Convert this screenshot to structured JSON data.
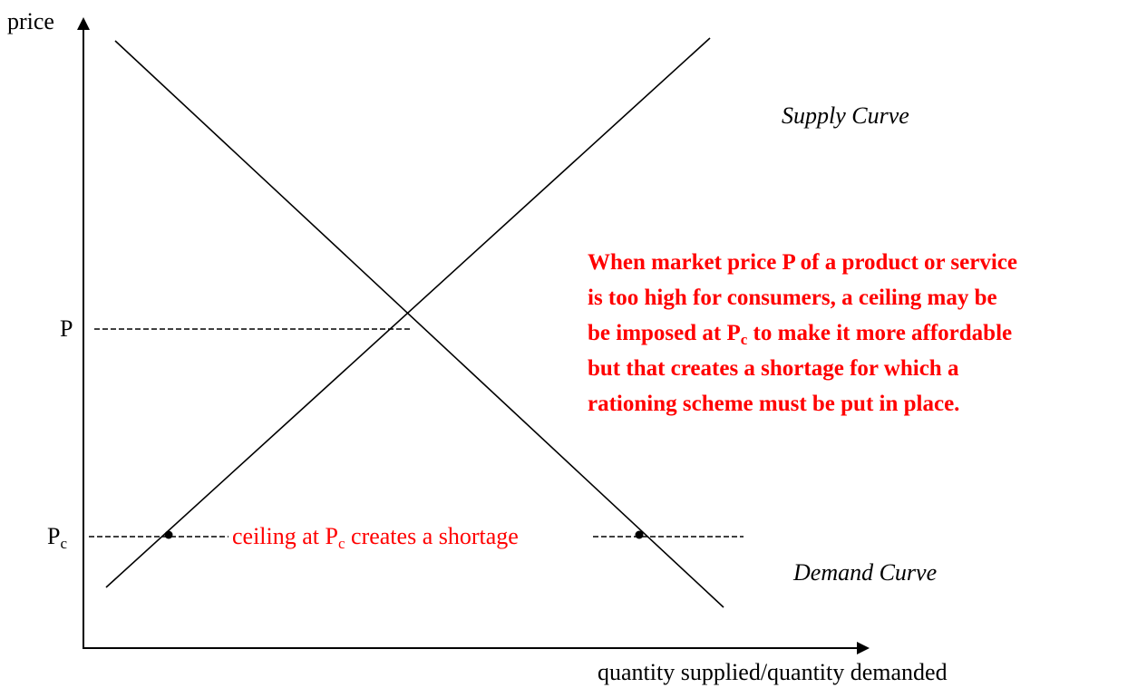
{
  "y_axis_label": "price",
  "x_axis_label": "quantity supplied/quantity demanded",
  "price_label": "P",
  "ceiling_label": {
    "main": "P",
    "sub": "c"
  },
  "supply_label": "Supply Curve",
  "demand_label": "Demand Curve",
  "shortage_note": {
    "before": "ceiling at P",
    "sub": "c",
    "after": " creates a shortage"
  },
  "explanation": {
    "line1": "When market price P of a product or service",
    "line2": "is too high for consumers, a ceiling may be",
    "line3": {
      "before": "be imposed at P",
      "sub": "c",
      "after": " to make it more affordable"
    },
    "line4": "but that creates a shortage for which a",
    "line5": "rationing scheme must be put in place."
  }
}
